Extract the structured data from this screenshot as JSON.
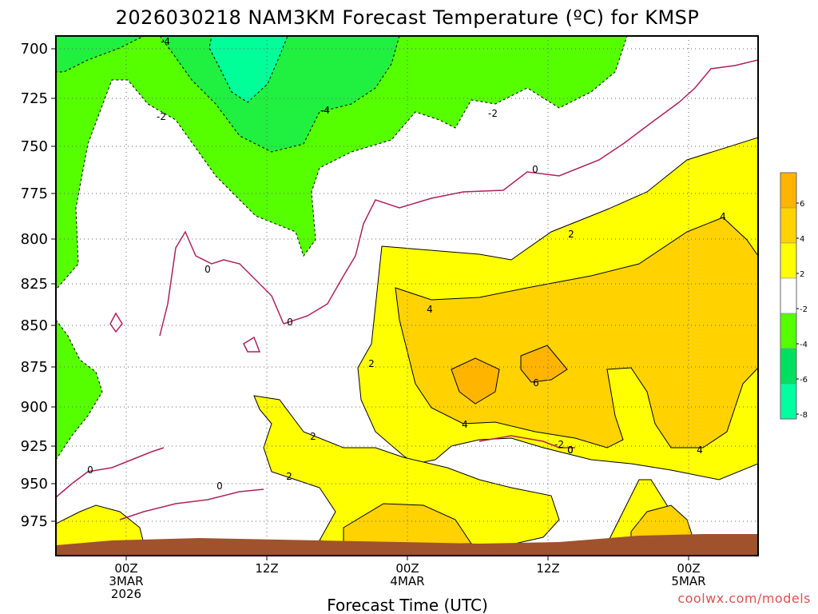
{
  "chart_data": {
    "type": "heatmap",
    "title": "2026030218 NAM3KM Forecast Temperature (ºC) for KMSP",
    "xlabel": "Forecast Time (UTC)",
    "ylabel": "",
    "y_axis": {
      "reversed": true,
      "ticks": [
        700,
        725,
        750,
        775,
        800,
        825,
        850,
        875,
        900,
        925,
        950,
        975
      ]
    },
    "x_axis": {
      "ticks": [
        {
          "lines": [
            "00Z",
            "3MAR",
            "2026"
          ]
        },
        {
          "lines": [
            "12Z"
          ]
        },
        {
          "lines": [
            "00Z",
            "4MAR"
          ]
        },
        {
          "lines": [
            "12Z"
          ]
        },
        {
          "lines": [
            "00Z",
            "5MAR"
          ]
        }
      ]
    },
    "grid": true,
    "contour_labels": [
      "-4",
      "-2",
      "-4",
      "-2",
      "0",
      "0",
      "0",
      "0",
      "0",
      "0",
      "2",
      "2",
      "2",
      "2",
      "4",
      "4",
      "4",
      "4",
      "6",
      "-2",
      "0"
    ],
    "colorbar": {
      "levels": [
        6,
        4,
        2,
        -2,
        -4,
        -6,
        -8
      ],
      "colors": [
        "#ffb400",
        "#ffd200",
        "#ffff00",
        "#ffffff",
        "#55ff00",
        "#00e060",
        "#00ffa0"
      ]
    },
    "colors": {
      "warm_4_6": "#ffd200",
      "warm_6_plus": "#ffb400",
      "warm_2_4": "#ffff00",
      "cold_m2_m4": "#55ff00",
      "cold_m4_m6": "#20f040",
      "cold_below_m6": "#00ff99",
      "zero_line": "#b0205a",
      "terrain": "#a0522d"
    },
    "credit": "coolwx.com/models"
  }
}
